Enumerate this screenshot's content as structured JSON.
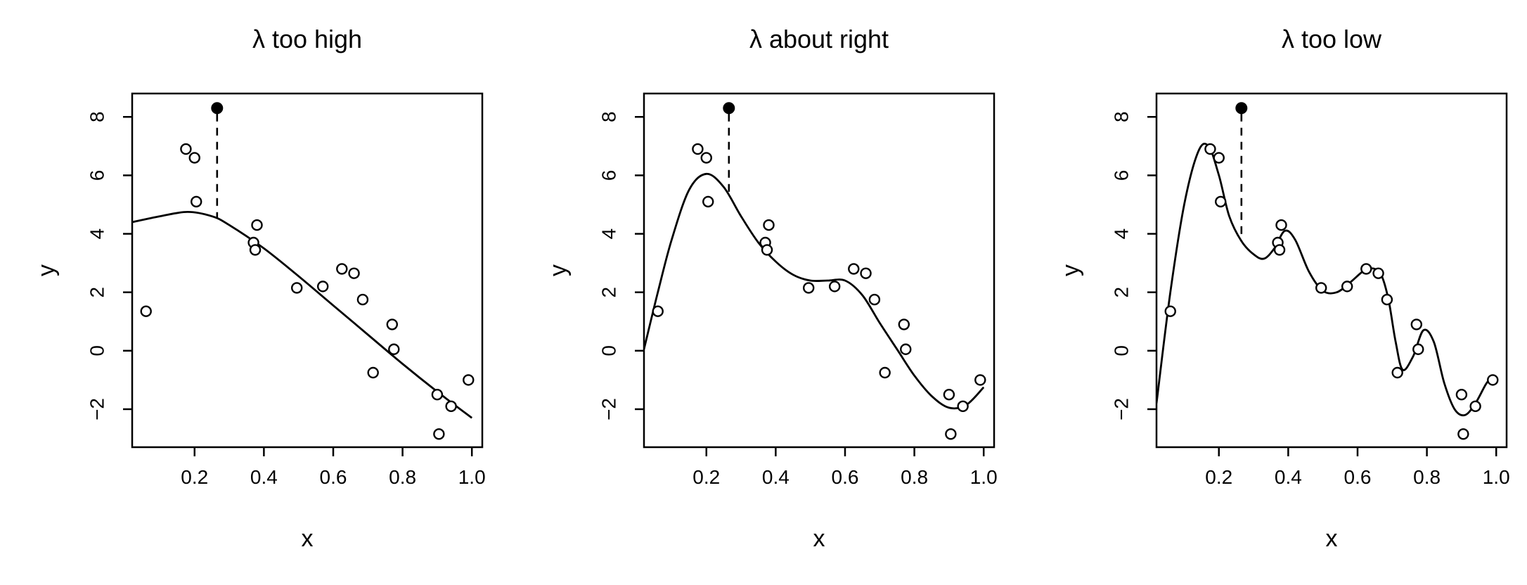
{
  "chart_data": [
    {
      "type": "scatter",
      "title": "λ too high",
      "xlabel": "x",
      "ylabel": "y",
      "xlim": [
        0.02,
        1.03
      ],
      "ylim": [
        -3.3,
        8.8
      ],
      "xticks": [
        0.2,
        0.4,
        0.6,
        0.8,
        1.0
      ],
      "xtick_labels": [
        "0.2",
        "0.4",
        "0.6",
        "0.8",
        "1.0"
      ],
      "yticks": [
        -2,
        0,
        2,
        4,
        6,
        8
      ],
      "ytick_labels": [
        "−2",
        "0",
        "2",
        "4",
        "6",
        "8"
      ],
      "points": {
        "x": [
          0.06,
          0.175,
          0.2,
          0.205,
          0.37,
          0.375,
          0.38,
          0.495,
          0.57,
          0.625,
          0.66,
          0.685,
          0.77,
          0.775,
          0.715,
          0.9,
          0.905,
          0.94,
          0.99
        ],
        "y": [
          1.35,
          6.9,
          6.6,
          5.1,
          3.7,
          3.45,
          4.3,
          2.15,
          2.2,
          2.8,
          2.65,
          1.75,
          0.9,
          0.05,
          -0.75,
          -1.5,
          -2.85,
          -1.9,
          -1.0
        ]
      },
      "highlight_point": {
        "x": 0.265,
        "y": 8.3
      },
      "fit_curve": {
        "x": [
          0.02,
          0.1,
          0.18,
          0.25,
          0.3,
          0.4,
          0.5,
          0.6,
          0.7,
          0.8,
          0.9,
          1.0
        ],
        "y": [
          4.4,
          4.6,
          4.75,
          4.6,
          4.3,
          3.5,
          2.55,
          1.55,
          0.55,
          -0.45,
          -1.4,
          -2.3
        ]
      },
      "residual": {
        "x": 0.265,
        "from_y": 8.3,
        "to_y": 4.55
      }
    },
    {
      "type": "scatter",
      "title": "λ about right",
      "xlabel": "x",
      "ylabel": "y",
      "xlim": [
        0.02,
        1.03
      ],
      "ylim": [
        -3.3,
        8.8
      ],
      "xticks": [
        0.2,
        0.4,
        0.6,
        0.8,
        1.0
      ],
      "xtick_labels": [
        "0.2",
        "0.4",
        "0.6",
        "0.8",
        "1.0"
      ],
      "yticks": [
        -2,
        0,
        2,
        4,
        6,
        8
      ],
      "ytick_labels": [
        "−2",
        "0",
        "2",
        "4",
        "6",
        "8"
      ],
      "points": {
        "x": [
          0.06,
          0.175,
          0.2,
          0.205,
          0.37,
          0.375,
          0.38,
          0.495,
          0.57,
          0.625,
          0.66,
          0.685,
          0.77,
          0.775,
          0.715,
          0.9,
          0.905,
          0.94,
          0.99
        ],
        "y": [
          1.35,
          6.9,
          6.6,
          5.1,
          3.7,
          3.45,
          4.3,
          2.15,
          2.2,
          2.8,
          2.65,
          1.75,
          0.9,
          0.05,
          -0.75,
          -1.5,
          -2.85,
          -1.9,
          -1.0
        ]
      },
      "highlight_point": {
        "x": 0.265,
        "y": 8.3
      },
      "fit_curve": {
        "x": [
          0.02,
          0.06,
          0.1,
          0.15,
          0.2,
          0.25,
          0.3,
          0.35,
          0.4,
          0.45,
          0.5,
          0.55,
          0.6,
          0.65,
          0.7,
          0.75,
          0.8,
          0.85,
          0.9,
          0.95,
          1.0
        ],
        "y": [
          0.05,
          2.0,
          3.8,
          5.5,
          6.05,
          5.6,
          4.6,
          3.7,
          3.05,
          2.6,
          2.4,
          2.4,
          2.4,
          1.9,
          0.95,
          0.05,
          -0.85,
          -1.55,
          -1.95,
          -1.85,
          -1.25
        ]
      },
      "residual": {
        "x": 0.265,
        "from_y": 8.3,
        "to_y": 5.35
      }
    },
    {
      "type": "scatter",
      "title": "λ too low",
      "xlabel": "x",
      "ylabel": "y",
      "xlim": [
        0.02,
        1.03
      ],
      "ylim": [
        -3.3,
        8.8
      ],
      "xticks": [
        0.2,
        0.4,
        0.6,
        0.8,
        1.0
      ],
      "xtick_labels": [
        "0.2",
        "0.4",
        "0.6",
        "0.8",
        "1.0"
      ],
      "yticks": [
        -2,
        0,
        2,
        4,
        6,
        8
      ],
      "ytick_labels": [
        "−2",
        "0",
        "2",
        "4",
        "6",
        "8"
      ],
      "points": {
        "x": [
          0.06,
          0.175,
          0.2,
          0.205,
          0.37,
          0.375,
          0.38,
          0.495,
          0.57,
          0.625,
          0.66,
          0.685,
          0.77,
          0.775,
          0.715,
          0.9,
          0.905,
          0.94,
          0.99
        ],
        "y": [
          1.35,
          6.9,
          6.6,
          5.1,
          3.7,
          3.45,
          4.3,
          2.15,
          2.2,
          2.8,
          2.65,
          1.75,
          0.9,
          0.05,
          -0.75,
          -1.5,
          -2.85,
          -1.9,
          -1.0
        ]
      },
      "highlight_point": {
        "x": 0.265,
        "y": 8.3
      },
      "fit_curve": {
        "x": [
          0.02,
          0.06,
          0.1,
          0.14,
          0.17,
          0.2,
          0.23,
          0.265,
          0.3,
          0.33,
          0.36,
          0.39,
          0.42,
          0.46,
          0.5,
          0.54,
          0.58,
          0.62,
          0.65,
          0.67,
          0.69,
          0.71,
          0.73,
          0.76,
          0.79,
          0.82,
          0.85,
          0.88,
          0.91,
          0.94,
          0.97,
          0.99
        ],
        "y": [
          -1.8,
          2.0,
          5.0,
          6.8,
          7.0,
          6.0,
          4.6,
          3.75,
          3.3,
          3.15,
          3.5,
          4.1,
          3.8,
          2.7,
          2.05,
          2.0,
          2.35,
          2.75,
          2.8,
          2.55,
          1.7,
          0.3,
          -0.65,
          -0.2,
          0.7,
          0.3,
          -1.1,
          -2.0,
          -2.2,
          -1.8,
          -1.15,
          -0.85
        ]
      },
      "residual": {
        "x": 0.265,
        "from_y": 8.3,
        "to_y": 3.75
      }
    }
  ]
}
